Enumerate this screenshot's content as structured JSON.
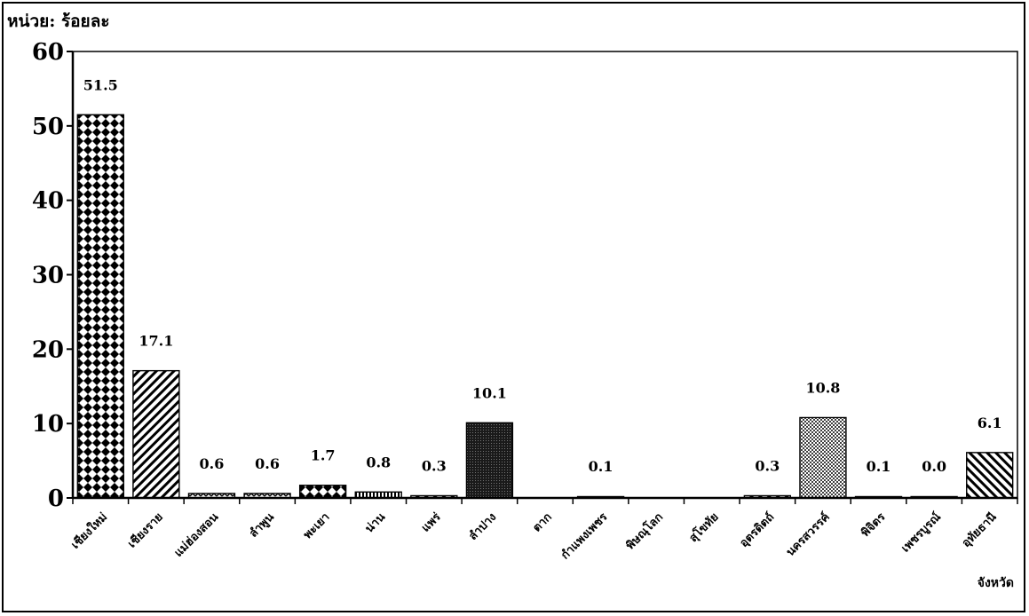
{
  "chart_data": {
    "type": "bar",
    "unit_label": "หน่วย: ร้อยละ",
    "xlabel": "จังหวัด",
    "ylim": [
      0,
      60
    ],
    "yticks": [
      0,
      10,
      20,
      30,
      40,
      50,
      60
    ],
    "grid": false,
    "legend": "none",
    "categories": [
      "เชียงใหม่",
      "เชียงราย",
      "แม่ฮ่องสอน",
      "ลำพูน",
      "พะเยา",
      "น่าน",
      "แพร่",
      "ลำปาง",
      "ตาก",
      "กำแพงเพชร",
      "พิษณุโลก",
      "สุโขทัย",
      "อุตรดิตถ์",
      "นครสวรรค์",
      "พิจิตร",
      "เพชรบูรณ์",
      "อุทัยธานี"
    ],
    "values": [
      51.5,
      17.1,
      0.6,
      0.6,
      1.7,
      0.8,
      0.3,
      10.1,
      null,
      0.1,
      null,
      null,
      0.3,
      10.8,
      0.1,
      0.0,
      6.1
    ],
    "data_labels": [
      "51.5",
      "17.1",
      "0.6",
      "0.6",
      "1.7",
      "0.8",
      "0.3",
      "10.1",
      "",
      "0.1",
      "",
      "",
      "0.3",
      "10.8",
      "0.1",
      "0.0",
      "6.1"
    ],
    "patterns": [
      "checker",
      "diag-right",
      "zigzag",
      "zigzag",
      "checker",
      "vlines",
      "diag-right",
      "dense-dark",
      "none",
      "diag-right",
      "none",
      "none",
      "diag-right",
      "dots",
      "diag-right",
      "diag-right",
      "diag-left"
    ]
  }
}
